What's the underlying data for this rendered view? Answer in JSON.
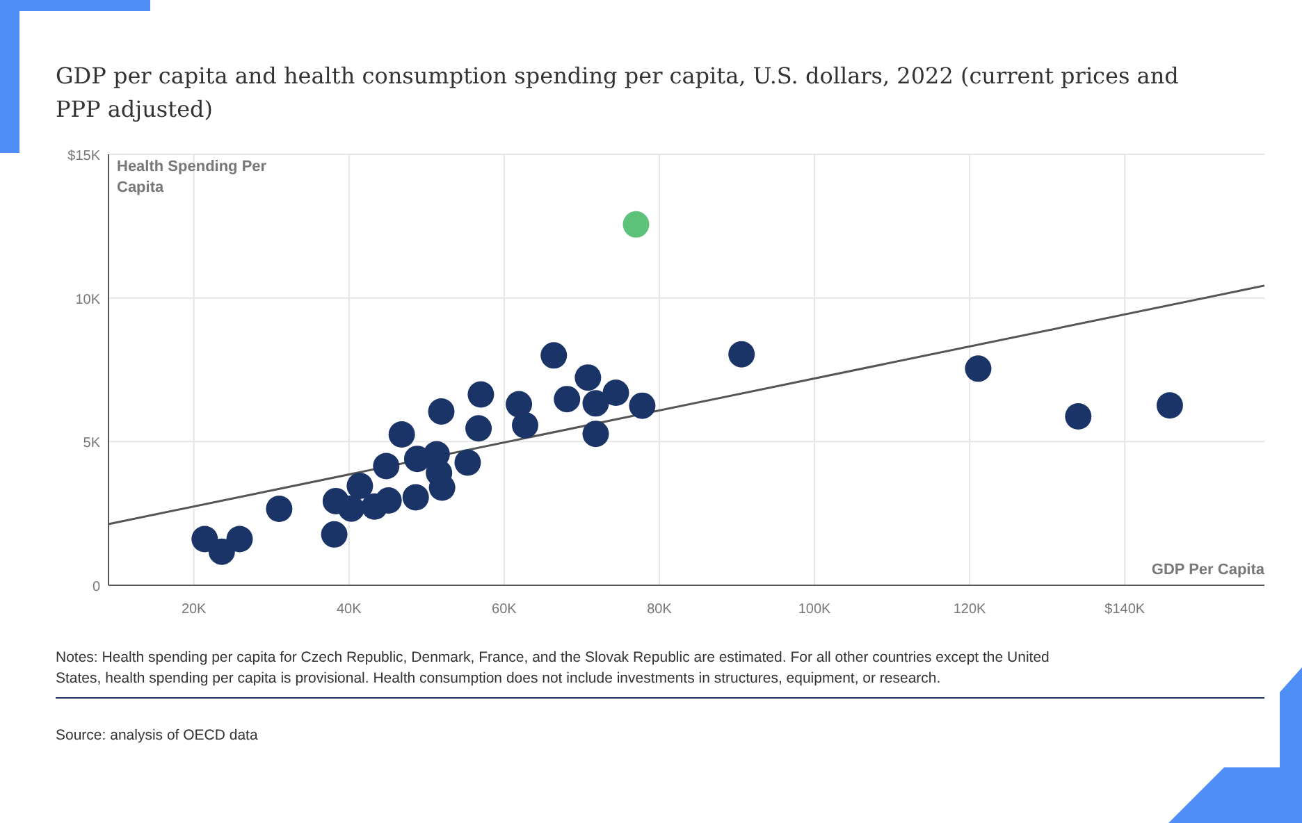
{
  "chart_data": {
    "type": "scatter",
    "title": "GDP per capita and health consumption spending per capita, U.S. dollars, 2022 (current prices and PPP adjusted)",
    "xlabel": "GDP Per Capita",
    "ylabel": "Health Spending Per Capita",
    "xlim": [
      9000,
      158000
    ],
    "xticks": [
      {
        "value": 20000,
        "label": "20K"
      },
      {
        "value": 40000,
        "label": "40K"
      },
      {
        "value": 60000,
        "label": "60K"
      },
      {
        "value": 80000,
        "label": "80K"
      },
      {
        "value": 100000,
        "label": "100K"
      },
      {
        "value": 120000,
        "label": "120K"
      },
      {
        "value": 140000,
        "label": "$140K"
      }
    ],
    "ylim": [
      0,
      15000
    ],
    "yticks": [
      0,
      {
        "value": 5000,
        "label": "5K"
      },
      {
        "value": 10000,
        "label": "10K"
      },
      {
        "value": 15000,
        "label": "$15K"
      }
    ],
    "grid": true,
    "series": [
      {
        "type": "line",
        "marker": "none",
        "color": "#555555",
        "x": [
          9000,
          158000
        ],
        "values": [
          2130,
          10430
        ]
      },
      {
        "color": "#1b3468",
        "marker": "circle",
        "x": [
          21400,
          23600,
          25900,
          31000,
          38100,
          38300,
          40300,
          41400,
          43300,
          45100,
          44800,
          46800,
          48600,
          48800,
          51300,
          51600,
          52000,
          51900,
          55300,
          56700,
          57000,
          61900,
          62700,
          66400,
          68100,
          70800,
          71800,
          71800,
          74400,
          77800,
          90600,
          121100,
          134000,
          145800
        ],
        "values": [
          1610,
          1170,
          1610,
          2660,
          1770,
          2930,
          2670,
          3460,
          2740,
          2950,
          4150,
          5250,
          3060,
          4400,
          4560,
          3910,
          3400,
          6050,
          4270,
          5460,
          6640,
          6300,
          5570,
          8000,
          6480,
          7230,
          6330,
          5270,
          6700,
          6250,
          8040,
          7540,
          5880,
          6260
        ]
      },
      {
        "color": "#5cc27a",
        "marker": "circle",
        "x": [
          77000
        ],
        "values": [
          12560
        ]
      }
    ],
    "annotations": [
      "Notes: Health spending per capita for Czech Republic, Denmark, France, and the Slovak Republic are estimated. For all other countries except the United States, health spending per capita is provisional. Health consumption does not include investments in structures, equipment, or research.",
      "Source: analysis of OECD data"
    ]
  }
}
